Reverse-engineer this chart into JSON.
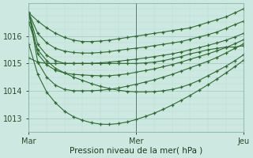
{
  "title": "",
  "xlabel": "Pression niveau de la mer( hPa )",
  "ylabel": "",
  "background_color": "#cce8e0",
  "plot_bg_color": "#cce8e0",
  "grid_color_major": "#aaccc4",
  "grid_color_minor": "#bbddd6",
  "line_color": "#2d6b30",
  "ylim": [
    1012.5,
    1017.2
  ],
  "yticks": [
    1013,
    1014,
    1015,
    1016
  ],
  "xticks": [
    0,
    24,
    48
  ],
  "xtick_labels": [
    "Mar",
    "Mer",
    "Jeu"
  ],
  "vline_x": 24,
  "n_points": 25,
  "series": [
    [
      1016.85,
      1016.55,
      1016.3,
      1016.1,
      1015.95,
      1015.85,
      1015.8,
      1015.8,
      1015.82,
      1015.85,
      1015.9,
      1015.95,
      1016.0,
      1016.05,
      1016.1,
      1016.15,
      1016.2,
      1016.25,
      1016.3,
      1016.4,
      1016.5,
      1016.6,
      1016.7,
      1016.85,
      1017.0
    ],
    [
      1016.85,
      1016.1,
      1015.75,
      1015.55,
      1015.45,
      1015.4,
      1015.38,
      1015.38,
      1015.4,
      1015.43,
      1015.48,
      1015.52,
      1015.56,
      1015.6,
      1015.65,
      1015.7,
      1015.75,
      1015.8,
      1015.88,
      1015.97,
      1016.05,
      1016.15,
      1016.28,
      1016.42,
      1016.55
    ],
    [
      1016.85,
      1015.7,
      1015.3,
      1015.1,
      1015.0,
      1015.0,
      1015.0,
      1015.0,
      1015.02,
      1015.05,
      1015.08,
      1015.12,
      1015.16,
      1015.2,
      1015.25,
      1015.3,
      1015.35,
      1015.42,
      1015.5,
      1015.58,
      1015.66,
      1015.75,
      1015.85,
      1015.97,
      1016.1
    ],
    [
      1016.85,
      1015.35,
      1014.95,
      1014.75,
      1014.65,
      1014.6,
      1014.58,
      1014.56,
      1014.55,
      1014.55,
      1014.58,
      1014.62,
      1014.68,
      1014.74,
      1014.8,
      1014.88,
      1014.96,
      1015.05,
      1015.15,
      1015.25,
      1015.35,
      1015.46,
      1015.58,
      1015.72,
      1015.87
    ],
    [
      1016.85,
      1015.05,
      1014.5,
      1014.2,
      1014.05,
      1014.0,
      1014.0,
      1014.0,
      1014.02,
      1014.05,
      1014.1,
      1014.17,
      1014.24,
      1014.32,
      1014.4,
      1014.5,
      1014.6,
      1014.72,
      1014.84,
      1014.96,
      1015.08,
      1015.22,
      1015.38,
      1015.55,
      1015.72
    ],
    [
      1016.5,
      1015.5,
      1015.1,
      1014.82,
      1014.65,
      1014.5,
      1014.38,
      1014.26,
      1014.16,
      1014.08,
      1014.02,
      1013.98,
      1013.96,
      1013.96,
      1013.97,
      1014.0,
      1014.05,
      1014.13,
      1014.24,
      1014.38,
      1014.55,
      1014.72,
      1014.9,
      1015.1,
      1015.32
    ],
    [
      1015.7,
      1014.6,
      1013.95,
      1013.55,
      1013.25,
      1013.05,
      1012.92,
      1012.83,
      1012.78,
      1012.77,
      1012.8,
      1012.86,
      1012.95,
      1013.06,
      1013.18,
      1013.32,
      1013.48,
      1013.65,
      1013.83,
      1014.02,
      1014.22,
      1014.43,
      1014.65,
      1014.88,
      1015.12
    ],
    [
      1015.2,
      1015.05,
      1015.0,
      1015.0,
      1015.0,
      1015.0,
      1015.0,
      1015.0,
      1015.0,
      1015.0,
      1015.0,
      1015.0,
      1015.0,
      1015.02,
      1015.05,
      1015.1,
      1015.17,
      1015.25,
      1015.35,
      1015.42,
      1015.5,
      1015.55,
      1015.6,
      1015.6,
      1015.65
    ]
  ]
}
